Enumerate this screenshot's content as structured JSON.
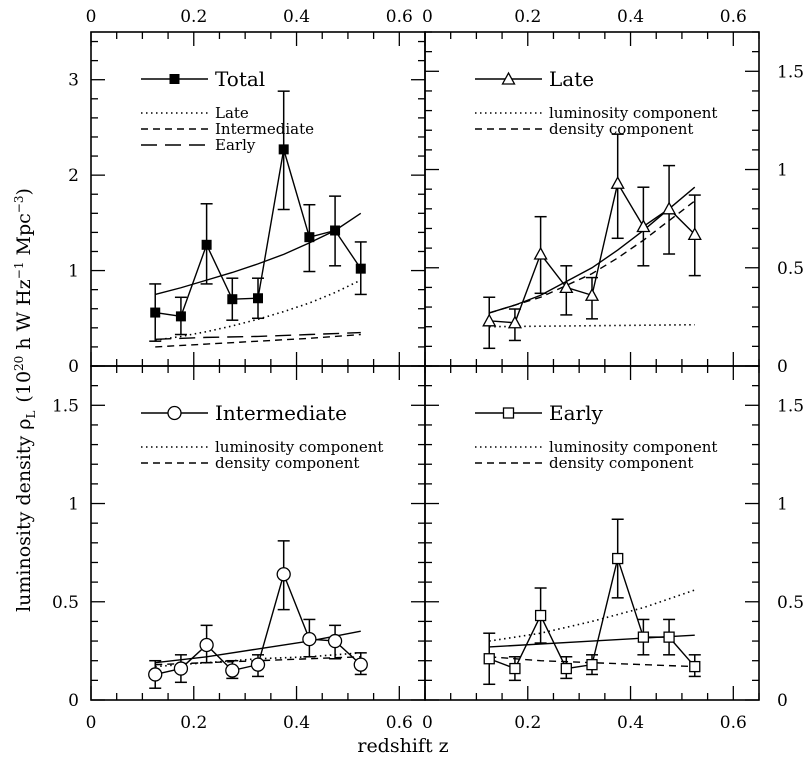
{
  "figure": {
    "xlabel": "redshift z",
    "ylabel_main": "luminosity density ρ",
    "ylabel_sub": "L",
    "ylabel_units_pre": "(10",
    "ylabel_units_exp1": "20",
    "ylabel_units_mid": " h W Hz",
    "ylabel_units_exp2": "−1",
    "ylabel_units_mid2": " Mpc",
    "ylabel_units_exp3": "−3",
    "ylabel_units_post": ")"
  },
  "chart_data": [
    {
      "id": "total",
      "type": "line",
      "panel": "top-left",
      "title": "Total",
      "marker": "filled-square",
      "xlim": [
        0,
        0.65
      ],
      "ylim": [
        0,
        3.5
      ],
      "xticks": [
        "0",
        "0.2",
        "0.4",
        "0.6"
      ],
      "xtick_values": [
        0,
        0.2,
        0.4,
        0.6
      ],
      "xticks_position": "top",
      "yticks": [
        "0",
        "1",
        "2",
        "3"
      ],
      "ytick_values": [
        0,
        1,
        2,
        3
      ],
      "yticks_side": "left",
      "y_minor_step": 0.2,
      "x_minor_step": 0.05,
      "legend": {
        "position": "top-left",
        "main": "Total",
        "entries": [
          {
            "label": "Late",
            "style": "dotted"
          },
          {
            "label": "Intermediate",
            "style": "short-dash"
          },
          {
            "label": "Early",
            "style": "long-dash"
          }
        ]
      },
      "x": [
        0.125,
        0.175,
        0.225,
        0.275,
        0.325,
        0.375,
        0.425,
        0.475,
        0.525
      ],
      "y": [
        0.56,
        0.52,
        1.27,
        0.7,
        0.71,
        2.27,
        1.35,
        1.42,
        1.02
      ],
      "y_err_high": [
        0.86,
        0.72,
        1.7,
        0.92,
        0.92,
        2.88,
        1.69,
        1.78,
        1.3
      ],
      "y_err_low": [
        0.26,
        0.33,
        0.86,
        0.48,
        0.5,
        1.64,
        0.99,
        1.05,
        0.75
      ],
      "curves": [
        {
          "name": "model-total",
          "style": "solid",
          "x": [
            0.125,
            0.175,
            0.225,
            0.275,
            0.325,
            0.375,
            0.425,
            0.475,
            0.525
          ],
          "y": [
            0.75,
            0.82,
            0.9,
            0.98,
            1.07,
            1.17,
            1.29,
            1.42,
            1.6
          ]
        },
        {
          "name": "Late",
          "style": "dotted",
          "x": [
            0.125,
            0.175,
            0.225,
            0.275,
            0.325,
            0.375,
            0.425,
            0.475,
            0.525
          ],
          "y": [
            0.27,
            0.31,
            0.36,
            0.42,
            0.49,
            0.57,
            0.66,
            0.77,
            0.9
          ]
        },
        {
          "name": "Intermediate",
          "style": "short-dash",
          "x": [
            0.125,
            0.225,
            0.325,
            0.425,
            0.525
          ],
          "y": [
            0.2,
            0.23,
            0.26,
            0.29,
            0.33
          ]
        },
        {
          "name": "Early",
          "style": "long-dash",
          "x": [
            0.125,
            0.225,
            0.325,
            0.425,
            0.525
          ],
          "y": [
            0.28,
            0.3,
            0.31,
            0.33,
            0.35
          ]
        }
      ]
    },
    {
      "id": "late",
      "type": "line",
      "panel": "top-right",
      "title": "Late",
      "marker": "open-triangle",
      "xlim": [
        0,
        0.65
      ],
      "ylim": [
        0,
        1.7
      ],
      "xticks": [
        "0",
        "0.2",
        "0.4",
        "0.6"
      ],
      "xtick_values": [
        0,
        0.2,
        0.4,
        0.6
      ],
      "xticks_position": "top",
      "yticks": [
        "0",
        "0.5",
        "1",
        "1.5"
      ],
      "ytick_values": [
        0,
        0.5,
        1,
        1.5
      ],
      "yticks_side": "right",
      "y_minor_step": 0.1,
      "x_minor_step": 0.05,
      "legend": {
        "position": "top-left",
        "main": "Late",
        "entries": [
          {
            "label": "luminosity component",
            "style": "dotted"
          },
          {
            "label": "density component",
            "style": "short-dash"
          }
        ]
      },
      "x": [
        0.125,
        0.175,
        0.225,
        0.275,
        0.325,
        0.375,
        0.425,
        0.475,
        0.525
      ],
      "y": [
        0.23,
        0.22,
        0.57,
        0.4,
        0.36,
        0.93,
        0.71,
        0.8,
        0.67
      ],
      "y_err_high": [
        0.35,
        0.29,
        0.76,
        0.51,
        0.45,
        1.18,
        0.91,
        1.02,
        0.87
      ],
      "y_err_low": [
        0.09,
        0.13,
        0.37,
        0.26,
        0.24,
        0.65,
        0.51,
        0.57,
        0.46
      ],
      "curves": [
        {
          "name": "model-total",
          "style": "solid",
          "x": [
            0.125,
            0.175,
            0.225,
            0.275,
            0.325,
            0.375,
            0.425,
            0.475,
            0.525
          ],
          "y": [
            0.27,
            0.31,
            0.36,
            0.43,
            0.5,
            0.59,
            0.69,
            0.8,
            0.91
          ]
        },
        {
          "name": "density component",
          "style": "short-dash",
          "x": [
            0.125,
            0.175,
            0.225,
            0.275,
            0.325,
            0.375,
            0.425,
            0.475,
            0.525
          ],
          "y": [
            0.27,
            0.31,
            0.35,
            0.41,
            0.47,
            0.55,
            0.64,
            0.74,
            0.84
          ]
        },
        {
          "name": "luminosity component",
          "style": "dotted",
          "x": [
            0.125,
            0.325,
            0.525
          ],
          "y": [
            0.2,
            0.205,
            0.21
          ]
        }
      ]
    },
    {
      "id": "intermediate",
      "type": "line",
      "panel": "bottom-left",
      "title": "Intermediate",
      "marker": "open-circle",
      "xlim": [
        0,
        0.65
      ],
      "ylim": [
        0,
        1.7
      ],
      "xticks": [
        "0",
        "0.2",
        "0.4",
        "0.6"
      ],
      "xtick_values": [
        0,
        0.2,
        0.4,
        0.6
      ],
      "xticks_position": "bottom",
      "yticks": [
        "0",
        "0.5",
        "1",
        "1.5"
      ],
      "ytick_values": [
        0,
        0.5,
        1,
        1.5
      ],
      "yticks_side": "left",
      "y_minor_step": 0.1,
      "x_minor_step": 0.05,
      "legend": {
        "position": "top-left",
        "main": "Intermediate",
        "entries": [
          {
            "label": "luminosity component",
            "style": "dotted"
          },
          {
            "label": "density component",
            "style": "short-dash"
          }
        ]
      },
      "x": [
        0.125,
        0.175,
        0.225,
        0.275,
        0.325,
        0.375,
        0.425,
        0.475,
        0.525
      ],
      "y": [
        0.13,
        0.16,
        0.28,
        0.15,
        0.18,
        0.64,
        0.31,
        0.3,
        0.18
      ],
      "y_err_high": [
        0.2,
        0.23,
        0.38,
        0.2,
        0.23,
        0.81,
        0.41,
        0.38,
        0.24
      ],
      "y_err_low": [
        0.06,
        0.09,
        0.19,
        0.11,
        0.12,
        0.46,
        0.22,
        0.21,
        0.13
      ],
      "curves": [
        {
          "name": "model-total",
          "style": "solid",
          "x": [
            0.125,
            0.225,
            0.325,
            0.425,
            0.525
          ],
          "y": [
            0.19,
            0.22,
            0.26,
            0.3,
            0.35
          ]
        },
        {
          "name": "luminosity component",
          "style": "dotted",
          "x": [
            0.125,
            0.225,
            0.325,
            0.425,
            0.525
          ],
          "y": [
            0.17,
            0.19,
            0.21,
            0.22,
            0.24
          ]
        },
        {
          "name": "density component",
          "style": "short-dash",
          "x": [
            0.125,
            0.225,
            0.325,
            0.425,
            0.525
          ],
          "y": [
            0.18,
            0.19,
            0.2,
            0.21,
            0.22
          ]
        }
      ]
    },
    {
      "id": "early",
      "type": "line",
      "panel": "bottom-right",
      "title": "Early",
      "marker": "open-square",
      "xlim": [
        0,
        0.65
      ],
      "ylim": [
        0,
        1.7
      ],
      "xticks": [
        "0",
        "0.2",
        "0.4",
        "0.6"
      ],
      "xtick_values": [
        0,
        0.2,
        0.4,
        0.6
      ],
      "xticks_position": "bottom",
      "yticks": [
        "0",
        "0.5",
        "1",
        "1.5"
      ],
      "ytick_values": [
        0,
        0.5,
        1,
        1.5
      ],
      "yticks_side": "right",
      "y_minor_step": 0.1,
      "x_minor_step": 0.05,
      "legend": {
        "position": "top-left",
        "main": "Early",
        "entries": [
          {
            "label": "luminosity component",
            "style": "dotted"
          },
          {
            "label": "density component",
            "style": "short-dash"
          }
        ]
      },
      "x": [
        0.125,
        0.175,
        0.225,
        0.275,
        0.325,
        0.375,
        0.425,
        0.475,
        0.525
      ],
      "y": [
        0.21,
        0.16,
        0.43,
        0.16,
        0.18,
        0.72,
        0.32,
        0.32,
        0.17
      ],
      "y_err_high": [
        0.34,
        0.22,
        0.57,
        0.22,
        0.23,
        0.92,
        0.41,
        0.41,
        0.23
      ],
      "y_err_low": [
        0.08,
        0.1,
        0.29,
        0.11,
        0.13,
        0.52,
        0.23,
        0.23,
        0.12
      ],
      "curves": [
        {
          "name": "model-total",
          "style": "solid",
          "x": [
            0.125,
            0.325,
            0.525
          ],
          "y": [
            0.27,
            0.3,
            0.33
          ]
        },
        {
          "name": "luminosity component",
          "style": "dotted",
          "x": [
            0.125,
            0.225,
            0.325,
            0.425,
            0.525
          ],
          "y": [
            0.3,
            0.34,
            0.4,
            0.47,
            0.56
          ]
        },
        {
          "name": "density component",
          "style": "short-dash",
          "x": [
            0.125,
            0.225,
            0.325,
            0.425,
            0.525
          ],
          "y": [
            0.22,
            0.2,
            0.19,
            0.18,
            0.17
          ]
        }
      ]
    }
  ]
}
